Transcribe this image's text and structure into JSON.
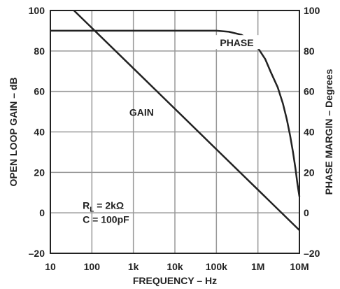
{
  "chart_data": {
    "type": "line",
    "xlabel": "FREQUENCY – Hz",
    "ylabel": "OPEN LOOP GAIN – dB",
    "y2label": "PHASE MARGIN – Degrees",
    "x_scale": "log",
    "xlim": [
      10,
      10000000
    ],
    "ylim": [
      -20,
      100
    ],
    "y2lim": [
      -20,
      100
    ],
    "x_ticks": [
      10,
      100,
      1000,
      10000,
      100000,
      1000000,
      10000000
    ],
    "x_tick_labels": [
      "10",
      "100",
      "1k",
      "10k",
      "100k",
      "1M",
      "10M"
    ],
    "y_ticks": [
      -20,
      0,
      20,
      40,
      60,
      80,
      100
    ],
    "y_tick_labels": [
      "–20",
      "0",
      "20",
      "40",
      "60",
      "80",
      "100"
    ],
    "y2_ticks": [
      -20,
      0,
      20,
      40,
      60,
      80,
      100
    ],
    "y2_tick_labels": [
      "–20",
      "0",
      "20",
      "40",
      "60",
      "80",
      "100"
    ],
    "grid": true,
    "series": [
      {
        "name": "GAIN",
        "axis": "left",
        "x": [
          37,
          100,
          1000,
          10000,
          100000,
          1000000,
          10000000
        ],
        "y": [
          100,
          91.4,
          71.4,
          51.4,
          31.4,
          11.4,
          -8.6
        ]
      },
      {
        "name": "PHASE",
        "axis": "right",
        "x": [
          10,
          100,
          1000,
          10000,
          100000,
          200000,
          400000,
          700000,
          1000000,
          1500000,
          2000000,
          3000000,
          4000000,
          5000000,
          6000000,
          7000000,
          8000000,
          9000000,
          10000000
        ],
        "y": [
          90,
          90,
          90,
          90,
          90,
          89.5,
          88,
          85,
          81.5,
          76,
          70,
          62,
          54,
          46,
          38,
          30,
          22,
          14,
          8
        ]
      }
    ],
    "annotations": [
      {
        "text": "PHASE",
        "x": 310000,
        "y": 83
      },
      {
        "text": "GAIN",
        "x": 800,
        "y": 48
      },
      {
        "text": "R",
        "sub": "L",
        "rest": " = 2kΩ",
        "x": 60,
        "y": 2
      },
      {
        "text": "C = 100pF",
        "x": 60,
        "y": -5
      }
    ]
  }
}
